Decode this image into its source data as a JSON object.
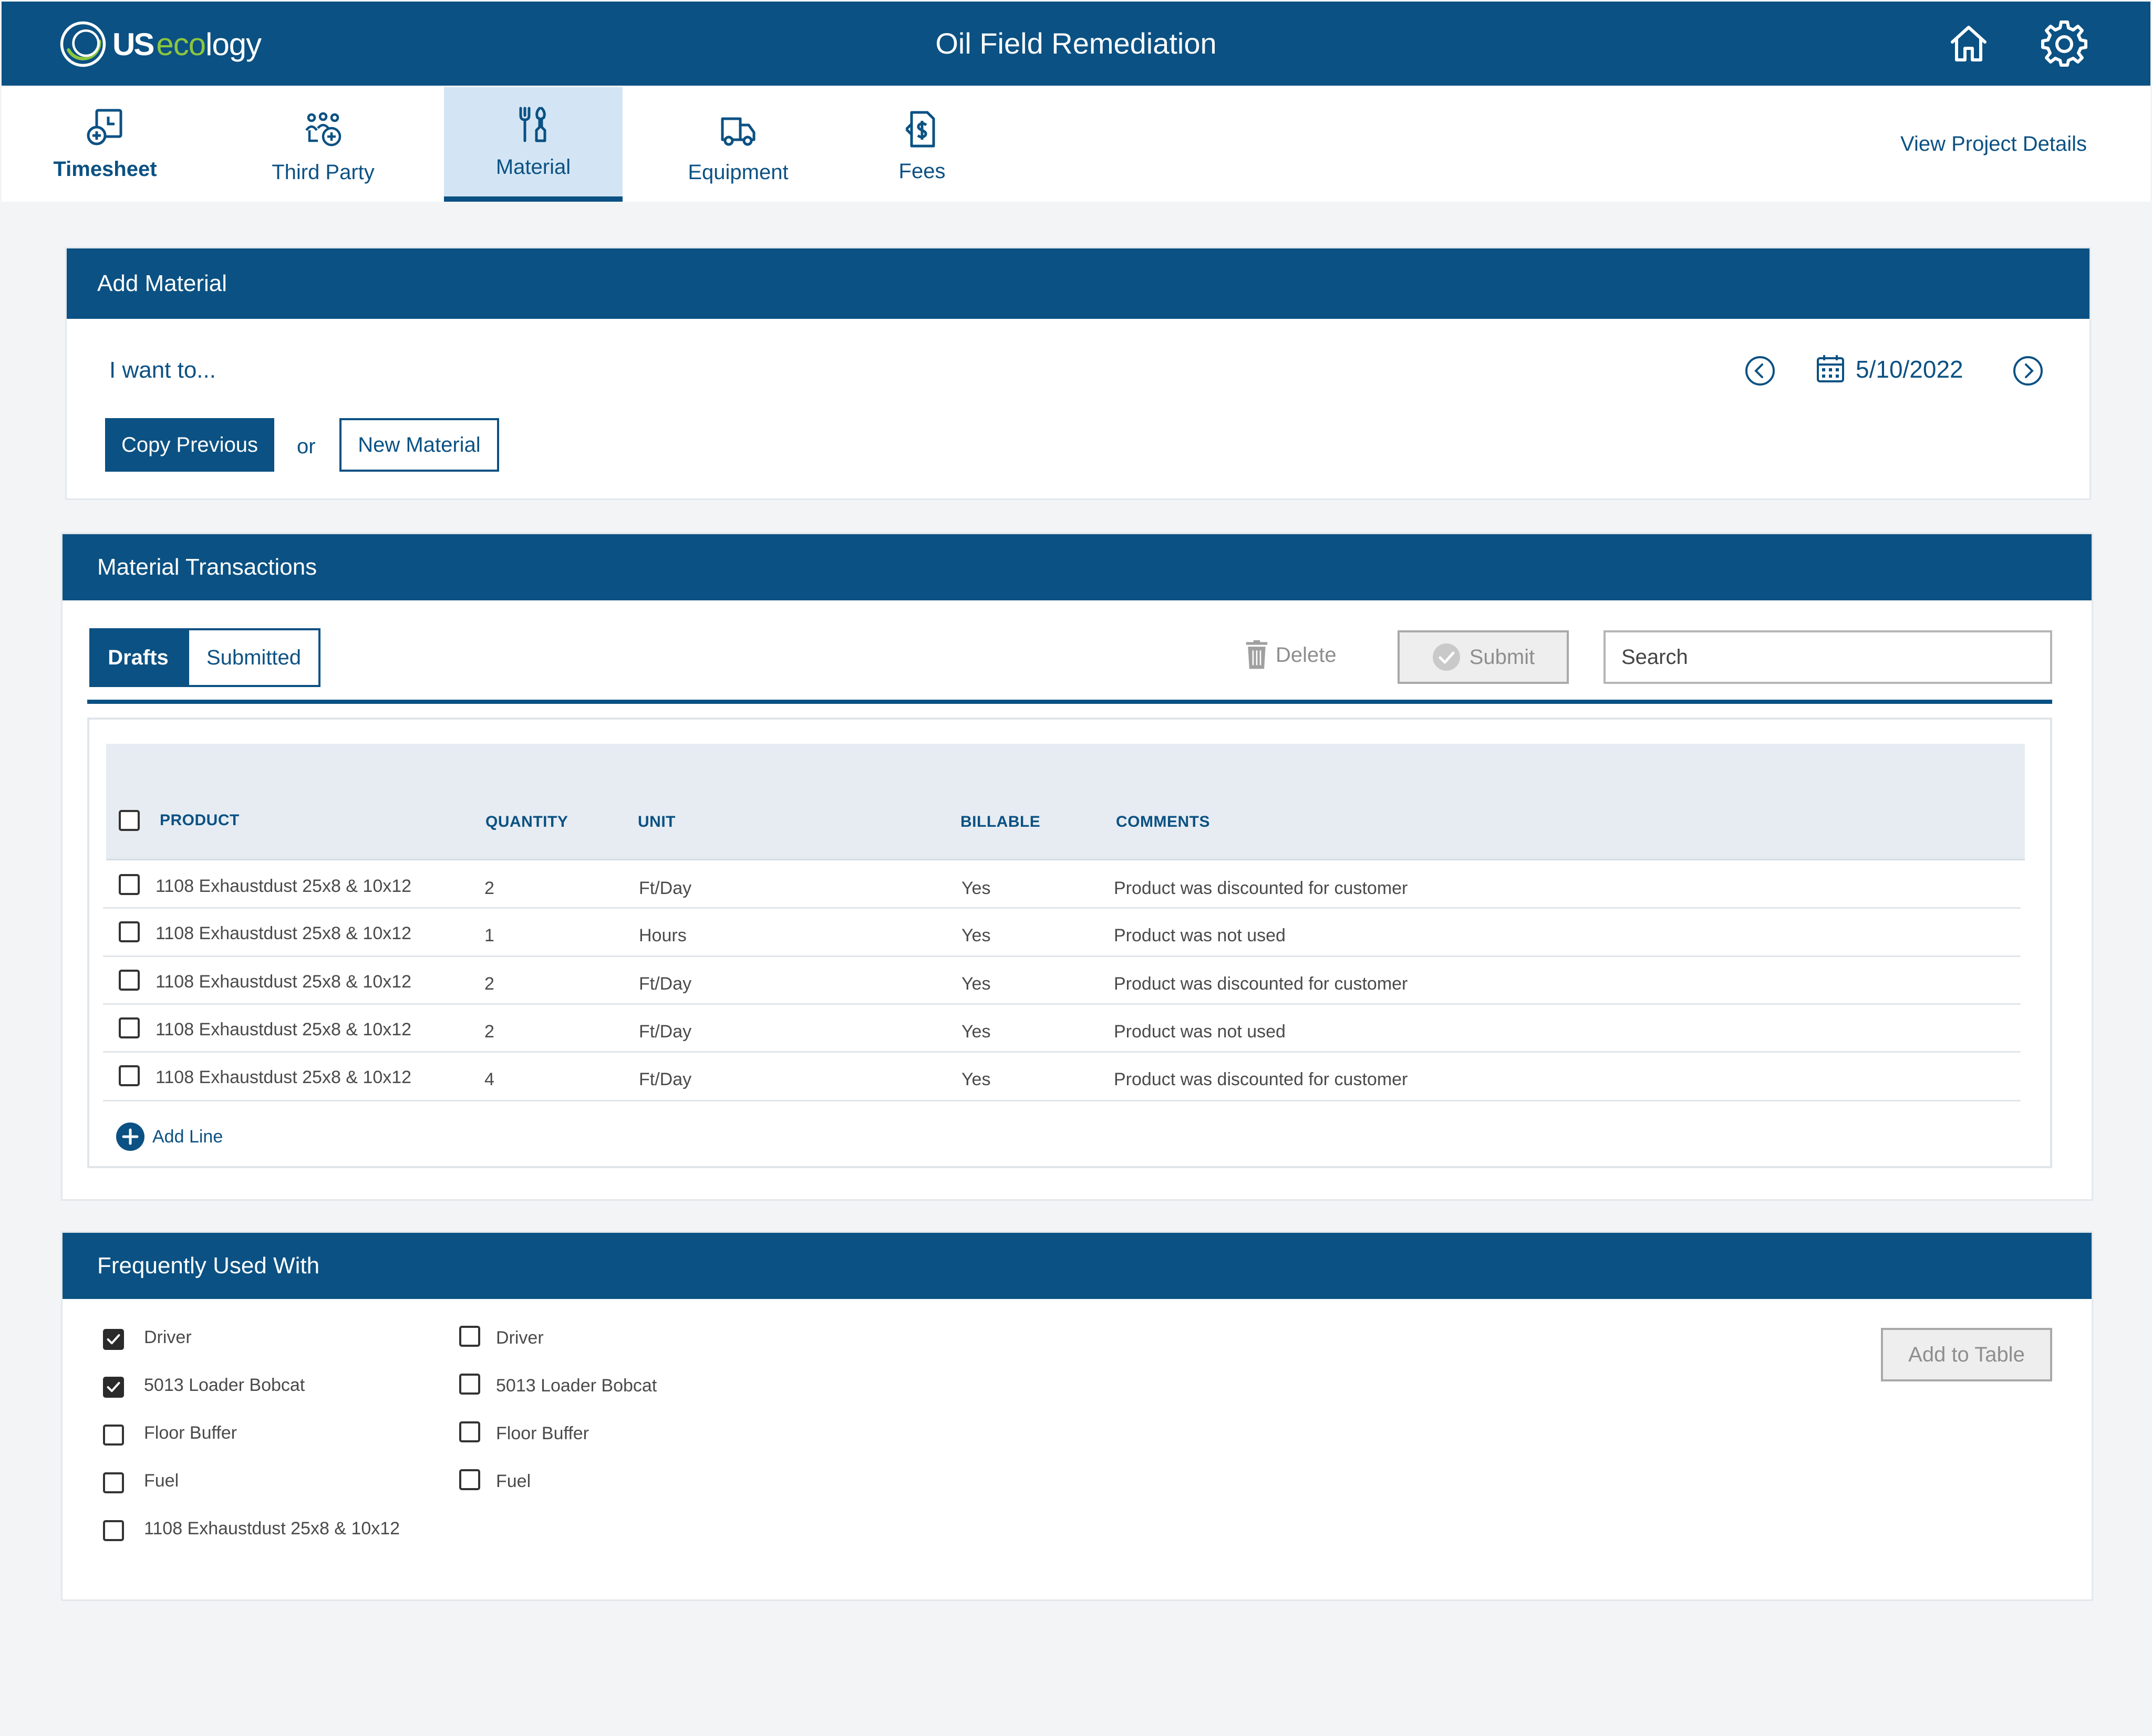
{
  "header": {
    "logo_us": "US",
    "logo_eco": "eco",
    "logo_logy": "logy",
    "title": "Oil Field Remediation",
    "home_icon": "home-icon",
    "settings_icon": "gear-icon"
  },
  "nav": {
    "tabs": [
      {
        "label": "Timesheet",
        "icon": "timesheet-icon"
      },
      {
        "label": "Third Party",
        "icon": "third-party-icon"
      },
      {
        "label": "Material",
        "icon": "material-icon"
      },
      {
        "label": "Equipment",
        "icon": "equipment-icon"
      },
      {
        "label": "Fees",
        "icon": "fees-icon"
      }
    ],
    "active_tab": "Material",
    "view_project_details": "View Project Details"
  },
  "add_material": {
    "title": "Add Material",
    "prompt": "I want to...",
    "copy_previous": "Copy Previous",
    "or": "or",
    "new_material": "New Material",
    "date": "5/10/2022"
  },
  "transactions": {
    "title": "Material Transactions",
    "tabs": [
      "Drafts",
      "Submitted"
    ],
    "active_tab": "Drafts",
    "delete_label": "Delete",
    "submit_label": "Submit",
    "search_placeholder": "Search",
    "columns": [
      "PRODUCT",
      "QUANTITY",
      "UNIT",
      "BILLABLE",
      "COMMENTS"
    ],
    "rows": [
      {
        "product": "1108 Exhaustdust 25x8 & 10x12",
        "quantity": "2",
        "unit": "Ft/Day",
        "billable": "Yes",
        "comments": "Product was discounted for customer"
      },
      {
        "product": "1108 Exhaustdust 25x8 & 10x12",
        "quantity": "1",
        "unit": "Hours",
        "billable": "Yes",
        "comments": "Product was not used"
      },
      {
        "product": "1108 Exhaustdust 25x8 & 10x12",
        "quantity": "2",
        "unit": "Ft/Day",
        "billable": "Yes",
        "comments": "Product was discounted for customer"
      },
      {
        "product": "1108 Exhaustdust 25x8 & 10x12",
        "quantity": "2",
        "unit": "Ft/Day",
        "billable": "Yes",
        "comments": "Product was not used"
      },
      {
        "product": "1108 Exhaustdust 25x8 & 10x12",
        "quantity": "4",
        "unit": "Ft/Day",
        "billable": "Yes",
        "comments": "Product was discounted for customer"
      }
    ],
    "add_line": "Add Line"
  },
  "frequently_used": {
    "title": "Frequently Used With",
    "left_items": [
      {
        "label": "Driver",
        "checked": true
      },
      {
        "label": "5013 Loader Bobcat",
        "checked": true
      },
      {
        "label": "Floor Buffer",
        "checked": false
      },
      {
        "label": "Fuel",
        "checked": false
      },
      {
        "label": "1108 Exhaustdust 25x8 & 10x12",
        "checked": false
      }
    ],
    "right_items": [
      {
        "label": "Driver",
        "checked": false
      },
      {
        "label": "5013 Loader Bobcat",
        "checked": false
      },
      {
        "label": "Floor Buffer",
        "checked": false
      },
      {
        "label": "Fuel",
        "checked": false
      }
    ],
    "add_to_table": "Add to Table"
  },
  "colors": {
    "primary": "#0b5183",
    "active_tab_bg": "#d3e5f4",
    "logo_green": "#8cc63e",
    "page_bg": "#f2f4f6"
  }
}
